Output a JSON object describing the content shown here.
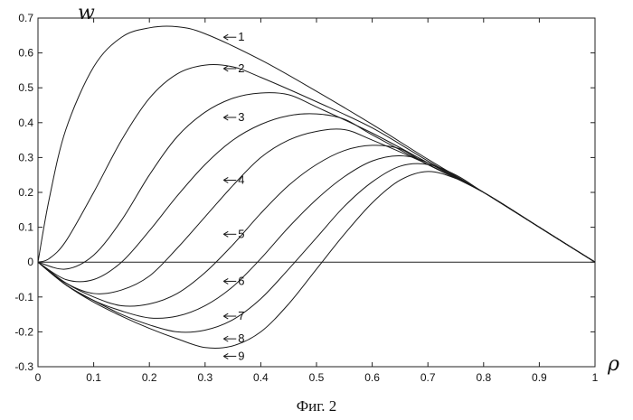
{
  "figure": {
    "caption": "Фиг. 2"
  },
  "chart_data": {
    "type": "line",
    "ylabel": "w",
    "xlabel": "ρ",
    "xlim": [
      0,
      1
    ],
    "ylim": [
      -0.3,
      0.7
    ],
    "x_ticks": [
      "0",
      "0.1",
      "0.2",
      "0.3",
      "0.4",
      "0.5",
      "0.6",
      "0.7",
      "0.8",
      "0.9",
      "1"
    ],
    "y_ticks": [
      "-0.3",
      "-0.2",
      "-0.1",
      "0",
      "0.1",
      "0.2",
      "0.3",
      "0.4",
      "0.5",
      "0.6",
      "0.7"
    ],
    "grid": false,
    "baseline": {
      "y": 0,
      "x": [
        0,
        1
      ]
    },
    "series": [
      {
        "name": "1",
        "label_at": [
          0.33,
          0.645
        ],
        "points": [
          [
            0,
            0
          ],
          [
            0.02,
            0.18
          ],
          [
            0.05,
            0.38
          ],
          [
            0.1,
            0.56
          ],
          [
            0.15,
            0.645
          ],
          [
            0.2,
            0.672
          ],
          [
            0.25,
            0.675
          ],
          [
            0.3,
            0.655
          ],
          [
            0.4,
            0.58
          ],
          [
            0.5,
            0.49
          ],
          [
            0.6,
            0.395
          ],
          [
            0.7,
            0.295
          ],
          [
            0.8,
            0.2
          ],
          [
            0.9,
            0.1
          ],
          [
            1,
            0
          ]
        ]
      },
      {
        "name": "2",
        "label_at": [
          0.33,
          0.555
        ],
        "points": [
          [
            0,
            0
          ],
          [
            0.02,
            0.01
          ],
          [
            0.05,
            0.06
          ],
          [
            0.1,
            0.2
          ],
          [
            0.15,
            0.35
          ],
          [
            0.2,
            0.47
          ],
          [
            0.25,
            0.54
          ],
          [
            0.3,
            0.565
          ],
          [
            0.35,
            0.56
          ],
          [
            0.4,
            0.53
          ],
          [
            0.5,
            0.46
          ],
          [
            0.6,
            0.385
          ],
          [
            0.7,
            0.29
          ],
          [
            0.8,
            0.2
          ],
          [
            0.9,
            0.1
          ],
          [
            1,
            0
          ]
        ]
      },
      {
        "name": "3",
        "label_at": [
          0.33,
          0.415
        ],
        "points": [
          [
            0,
            0
          ],
          [
            0.05,
            -0.02
          ],
          [
            0.1,
            0.02
          ],
          [
            0.15,
            0.12
          ],
          [
            0.2,
            0.25
          ],
          [
            0.25,
            0.36
          ],
          [
            0.3,
            0.43
          ],
          [
            0.35,
            0.47
          ],
          [
            0.4,
            0.485
          ],
          [
            0.45,
            0.48
          ],
          [
            0.5,
            0.445
          ],
          [
            0.6,
            0.37
          ],
          [
            0.7,
            0.285
          ],
          [
            0.8,
            0.2
          ],
          [
            0.9,
            0.1
          ],
          [
            1,
            0
          ]
        ]
      },
      {
        "name": "4",
        "label_at": [
          0.33,
          0.235
        ],
        "points": [
          [
            0,
            0
          ],
          [
            0.05,
            -0.05
          ],
          [
            0.1,
            -0.05
          ],
          [
            0.15,
            0.0
          ],
          [
            0.2,
            0.09
          ],
          [
            0.25,
            0.19
          ],
          [
            0.3,
            0.28
          ],
          [
            0.35,
            0.35
          ],
          [
            0.4,
            0.395
          ],
          [
            0.45,
            0.42
          ],
          [
            0.5,
            0.425
          ],
          [
            0.55,
            0.41
          ],
          [
            0.6,
            0.365
          ],
          [
            0.7,
            0.28
          ],
          [
            0.8,
            0.2
          ],
          [
            0.9,
            0.1
          ],
          [
            1,
            0
          ]
        ]
      },
      {
        "name": "5",
        "label_at": [
          0.33,
          0.08
        ],
        "points": [
          [
            0,
            0
          ],
          [
            0.05,
            -0.06
          ],
          [
            0.1,
            -0.09
          ],
          [
            0.15,
            -0.08
          ],
          [
            0.2,
            -0.04
          ],
          [
            0.25,
            0.04
          ],
          [
            0.3,
            0.13
          ],
          [
            0.35,
            0.22
          ],
          [
            0.4,
            0.3
          ],
          [
            0.45,
            0.35
          ],
          [
            0.5,
            0.375
          ],
          [
            0.55,
            0.38
          ],
          [
            0.6,
            0.35
          ],
          [
            0.7,
            0.28
          ],
          [
            0.8,
            0.2
          ],
          [
            0.9,
            0.1
          ],
          [
            1,
            0
          ]
        ]
      },
      {
        "name": "6",
        "label_at": [
          0.33,
          -0.055
        ],
        "points": [
          [
            0,
            0
          ],
          [
            0.05,
            -0.06
          ],
          [
            0.1,
            -0.1
          ],
          [
            0.15,
            -0.125
          ],
          [
            0.2,
            -0.12
          ],
          [
            0.25,
            -0.09
          ],
          [
            0.3,
            -0.03
          ],
          [
            0.35,
            0.05
          ],
          [
            0.4,
            0.14
          ],
          [
            0.45,
            0.22
          ],
          [
            0.5,
            0.28
          ],
          [
            0.55,
            0.32
          ],
          [
            0.6,
            0.335
          ],
          [
            0.65,
            0.325
          ],
          [
            0.7,
            0.28
          ],
          [
            0.8,
            0.2
          ],
          [
            0.9,
            0.1
          ],
          [
            1,
            0
          ]
        ]
      },
      {
        "name": "7",
        "label_at": [
          0.33,
          -0.155
        ],
        "points": [
          [
            0,
            0
          ],
          [
            0.05,
            -0.065
          ],
          [
            0.1,
            -0.11
          ],
          [
            0.15,
            -0.14
          ],
          [
            0.2,
            -0.16
          ],
          [
            0.25,
            -0.155
          ],
          [
            0.3,
            -0.125
          ],
          [
            0.35,
            -0.07
          ],
          [
            0.4,
            0.01
          ],
          [
            0.45,
            0.1
          ],
          [
            0.5,
            0.18
          ],
          [
            0.55,
            0.245
          ],
          [
            0.6,
            0.29
          ],
          [
            0.65,
            0.305
          ],
          [
            0.7,
            0.285
          ],
          [
            0.8,
            0.2
          ],
          [
            0.9,
            0.1
          ],
          [
            1,
            0
          ]
        ]
      },
      {
        "name": "8",
        "label_at": [
          0.33,
          -0.22
        ],
        "points": [
          [
            0,
            0
          ],
          [
            0.05,
            -0.065
          ],
          [
            0.1,
            -0.11
          ],
          [
            0.15,
            -0.15
          ],
          [
            0.2,
            -0.18
          ],
          [
            0.25,
            -0.2
          ],
          [
            0.3,
            -0.195
          ],
          [
            0.35,
            -0.165
          ],
          [
            0.4,
            -0.105
          ],
          [
            0.45,
            -0.02
          ],
          [
            0.5,
            0.07
          ],
          [
            0.55,
            0.16
          ],
          [
            0.6,
            0.23
          ],
          [
            0.65,
            0.275
          ],
          [
            0.7,
            0.28
          ],
          [
            0.75,
            0.25
          ],
          [
            0.8,
            0.2
          ],
          [
            0.9,
            0.1
          ],
          [
            1,
            0
          ]
        ]
      },
      {
        "name": "9",
        "label_at": [
          0.33,
          -0.27
        ],
        "points": [
          [
            0,
            0
          ],
          [
            0.05,
            -0.065
          ],
          [
            0.1,
            -0.115
          ],
          [
            0.15,
            -0.155
          ],
          [
            0.2,
            -0.19
          ],
          [
            0.25,
            -0.22
          ],
          [
            0.3,
            -0.245
          ],
          [
            0.35,
            -0.24
          ],
          [
            0.4,
            -0.2
          ],
          [
            0.45,
            -0.12
          ],
          [
            0.5,
            -0.02
          ],
          [
            0.55,
            0.08
          ],
          [
            0.6,
            0.17
          ],
          [
            0.65,
            0.235
          ],
          [
            0.7,
            0.26
          ],
          [
            0.75,
            0.24
          ],
          [
            0.8,
            0.2
          ],
          [
            0.9,
            0.1
          ],
          [
            1,
            0
          ]
        ]
      }
    ]
  }
}
